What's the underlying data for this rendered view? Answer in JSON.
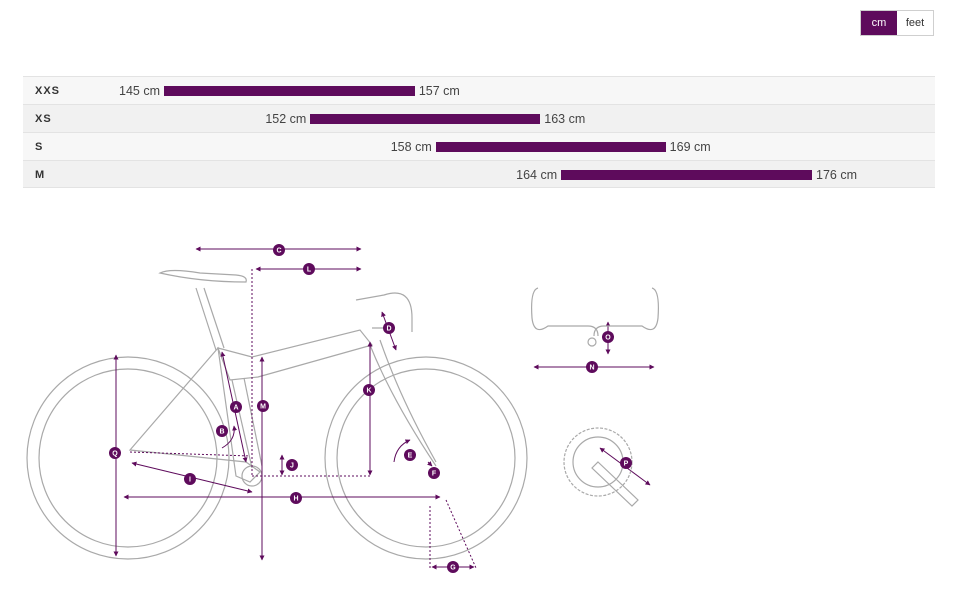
{
  "units": {
    "options": [
      "cm",
      "feet"
    ],
    "selected": "cm"
  },
  "sizes": [
    {
      "name": "XXS",
      "min": "145 cm",
      "max": "157 cm",
      "min_cm": 145,
      "max_cm": 157
    },
    {
      "name": "XS",
      "min": "152 cm",
      "max": "163 cm",
      "min_cm": 152,
      "max_cm": 163
    },
    {
      "name": "S",
      "min": "158 cm",
      "max": "169 cm",
      "min_cm": 158,
      "max_cm": 169
    },
    {
      "name": "M",
      "min": "164 cm",
      "max": "176 cm",
      "min_cm": 164,
      "max_cm": 176
    }
  ],
  "geometry": {
    "markers": [
      "A",
      "B",
      "C",
      "D",
      "E",
      "F",
      "G",
      "H",
      "I",
      "J",
      "K",
      "L",
      "M",
      "N",
      "O",
      "P",
      "Q"
    ]
  },
  "colors": {
    "accent": "#5e0b5c",
    "frame_line": "#a9a9a9"
  }
}
